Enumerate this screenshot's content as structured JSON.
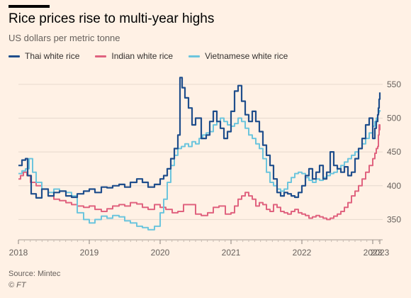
{
  "header": {
    "title": "Rice prices rise to multi-year highs",
    "subtitle": "US dollars per metric tonne"
  },
  "footer": {
    "source": "Source: Mintec",
    "credit": "© FT"
  },
  "colors": {
    "background": "#fff1e5",
    "grid": "#e6d9ce",
    "text": "#33302e",
    "muted": "#66605c"
  },
  "chart_data": {
    "type": "line",
    "title": "Rice prices rise to multi-year highs",
    "subtitle": "US dollars per metric tonne",
    "xlabel": "",
    "ylabel": "",
    "y_axis_side": "right",
    "grid": true,
    "legend_position": "top-left",
    "xlim": [
      2018.0,
      2023.1
    ],
    "ylim": [
      320,
      575
    ],
    "y_ticks": [
      350,
      400,
      450,
      500,
      550
    ],
    "x_tick_labels": [
      "2018",
      "2019",
      "2020",
      "2021",
      "2022",
      "2023",
      "2023"
    ],
    "x_tick_positions": [
      2018.0,
      2019.0,
      2020.0,
      2021.0,
      2022.0,
      2023.0,
      2023.1
    ],
    "series": [
      {
        "name": "Thai white rice",
        "color": "#1f4e8c",
        "points": [
          [
            2018.0,
            430
          ],
          [
            2018.05,
            438
          ],
          [
            2018.1,
            440
          ],
          [
            2018.13,
            415
          ],
          [
            2018.18,
            388
          ],
          [
            2018.25,
            382
          ],
          [
            2018.33,
            395
          ],
          [
            2018.42,
            385
          ],
          [
            2018.5,
            390
          ],
          [
            2018.58,
            392
          ],
          [
            2018.67,
            385
          ],
          [
            2018.75,
            383
          ],
          [
            2018.83,
            388
          ],
          [
            2018.92,
            392
          ],
          [
            2019.0,
            395
          ],
          [
            2019.08,
            390
          ],
          [
            2019.17,
            398
          ],
          [
            2019.25,
            397
          ],
          [
            2019.33,
            400
          ],
          [
            2019.42,
            402
          ],
          [
            2019.5,
            398
          ],
          [
            2019.58,
            405
          ],
          [
            2019.67,
            410
          ],
          [
            2019.75,
            405
          ],
          [
            2019.83,
            398
          ],
          [
            2019.92,
            402
          ],
          [
            2020.0,
            410
          ],
          [
            2020.05,
            415
          ],
          [
            2020.1,
            425
          ],
          [
            2020.15,
            440
          ],
          [
            2020.2,
            455
          ],
          [
            2020.25,
            475
          ],
          [
            2020.28,
            560
          ],
          [
            2020.31,
            545
          ],
          [
            2020.35,
            530
          ],
          [
            2020.4,
            515
          ],
          [
            2020.45,
            490
          ],
          [
            2020.5,
            500
          ],
          [
            2020.58,
            470
          ],
          [
            2020.65,
            475
          ],
          [
            2020.7,
            495
          ],
          [
            2020.75,
            510
          ],
          [
            2020.8,
            495
          ],
          [
            2020.85,
            485
          ],
          [
            2020.9,
            470
          ],
          [
            2020.95,
            480
          ],
          [
            2021.0,
            510
          ],
          [
            2021.05,
            540
          ],
          [
            2021.1,
            548
          ],
          [
            2021.15,
            525
          ],
          [
            2021.2,
            505
          ],
          [
            2021.25,
            495
          ],
          [
            2021.3,
            510
          ],
          [
            2021.35,
            495
          ],
          [
            2021.4,
            480
          ],
          [
            2021.45,
            460
          ],
          [
            2021.5,
            445
          ],
          [
            2021.55,
            430
          ],
          [
            2021.6,
            410
          ],
          [
            2021.65,
            390
          ],
          [
            2021.7,
            385
          ],
          [
            2021.75,
            390
          ],
          [
            2021.8,
            388
          ],
          [
            2021.85,
            385
          ],
          [
            2021.9,
            383
          ],
          [
            2021.95,
            390
          ],
          [
            2022.0,
            400
          ],
          [
            2022.05,
            415
          ],
          [
            2022.1,
            425
          ],
          [
            2022.15,
            410
          ],
          [
            2022.2,
            420
          ],
          [
            2022.25,
            430
          ],
          [
            2022.3,
            410
          ],
          [
            2022.35,
            420
          ],
          [
            2022.4,
            450
          ],
          [
            2022.45,
            430
          ],
          [
            2022.5,
            425
          ],
          [
            2022.55,
            420
          ],
          [
            2022.6,
            428
          ],
          [
            2022.65,
            415
          ],
          [
            2022.7,
            420
          ],
          [
            2022.75,
            440
          ],
          [
            2022.8,
            455
          ],
          [
            2022.85,
            470
          ],
          [
            2022.9,
            490
          ],
          [
            2022.95,
            500
          ],
          [
            2023.0,
            470
          ],
          [
            2023.03,
            485
          ],
          [
            2023.05,
            495
          ],
          [
            2023.07,
            505
          ],
          [
            2023.08,
            515
          ],
          [
            2023.09,
            528
          ],
          [
            2023.1,
            538
          ]
        ]
      },
      {
        "name": "Indian white rice",
        "color": "#e0637f",
        "points": [
          [
            2018.0,
            410
          ],
          [
            2018.03,
            415
          ],
          [
            2018.07,
            420
          ],
          [
            2018.12,
            415
          ],
          [
            2018.17,
            405
          ],
          [
            2018.25,
            400
          ],
          [
            2018.33,
            395
          ],
          [
            2018.42,
            385
          ],
          [
            2018.5,
            380
          ],
          [
            2018.58,
            378
          ],
          [
            2018.67,
            375
          ],
          [
            2018.75,
            372
          ],
          [
            2018.83,
            370
          ],
          [
            2018.92,
            368
          ],
          [
            2019.0,
            370
          ],
          [
            2019.08,
            365
          ],
          [
            2019.17,
            362
          ],
          [
            2019.25,
            366
          ],
          [
            2019.33,
            370
          ],
          [
            2019.42,
            372
          ],
          [
            2019.5,
            370
          ],
          [
            2019.58,
            375
          ],
          [
            2019.67,
            373
          ],
          [
            2019.75,
            368
          ],
          [
            2019.83,
            365
          ],
          [
            2019.92,
            372
          ],
          [
            2020.0,
            368
          ],
          [
            2020.08,
            365
          ],
          [
            2020.17,
            360
          ],
          [
            2020.25,
            362
          ],
          [
            2020.33,
            372
          ],
          [
            2020.42,
            372
          ],
          [
            2020.5,
            358
          ],
          [
            2020.58,
            356
          ],
          [
            2020.67,
            360
          ],
          [
            2020.75,
            368
          ],
          [
            2020.83,
            370
          ],
          [
            2020.92,
            358
          ],
          [
            2021.0,
            360
          ],
          [
            2021.05,
            370
          ],
          [
            2021.1,
            380
          ],
          [
            2021.15,
            385
          ],
          [
            2021.2,
            390
          ],
          [
            2021.25,
            385
          ],
          [
            2021.3,
            380
          ],
          [
            2021.35,
            370
          ],
          [
            2021.4,
            375
          ],
          [
            2021.45,
            372
          ],
          [
            2021.5,
            365
          ],
          [
            2021.55,
            362
          ],
          [
            2021.6,
            372
          ],
          [
            2021.65,
            368
          ],
          [
            2021.7,
            362
          ],
          [
            2021.75,
            360
          ],
          [
            2021.8,
            358
          ],
          [
            2021.85,
            362
          ],
          [
            2021.9,
            365
          ],
          [
            2021.95,
            360
          ],
          [
            2022.0,
            358
          ],
          [
            2022.05,
            356
          ],
          [
            2022.1,
            352
          ],
          [
            2022.15,
            354
          ],
          [
            2022.2,
            356
          ],
          [
            2022.25,
            354
          ],
          [
            2022.3,
            352
          ],
          [
            2022.35,
            350
          ],
          [
            2022.4,
            352
          ],
          [
            2022.45,
            355
          ],
          [
            2022.5,
            358
          ],
          [
            2022.55,
            362
          ],
          [
            2022.6,
            368
          ],
          [
            2022.65,
            375
          ],
          [
            2022.7,
            385
          ],
          [
            2022.75,
            392
          ],
          [
            2022.8,
            400
          ],
          [
            2022.85,
            410
          ],
          [
            2022.9,
            420
          ],
          [
            2022.95,
            430
          ],
          [
            2023.0,
            440
          ],
          [
            2023.03,
            448
          ],
          [
            2023.05,
            455
          ],
          [
            2023.07,
            458
          ],
          [
            2023.08,
            475
          ],
          [
            2023.09,
            490
          ],
          [
            2023.1,
            482
          ]
        ]
      },
      {
        "name": "Vietnamese white rice",
        "color": "#6cc5dd",
        "points": [
          [
            2018.0,
            418
          ],
          [
            2018.05,
            422
          ],
          [
            2018.1,
            425
          ],
          [
            2018.15,
            440
          ],
          [
            2018.2,
            420
          ],
          [
            2018.25,
            405
          ],
          [
            2018.33,
            395
          ],
          [
            2018.42,
            390
          ],
          [
            2018.5,
            395
          ],
          [
            2018.58,
            392
          ],
          [
            2018.67,
            390
          ],
          [
            2018.75,
            385
          ],
          [
            2018.83,
            360
          ],
          [
            2018.92,
            350
          ],
          [
            2019.0,
            345
          ],
          [
            2019.08,
            350
          ],
          [
            2019.17,
            355
          ],
          [
            2019.25,
            352
          ],
          [
            2019.33,
            356
          ],
          [
            2019.42,
            354
          ],
          [
            2019.5,
            348
          ],
          [
            2019.58,
            345
          ],
          [
            2019.67,
            340
          ],
          [
            2019.75,
            338
          ],
          [
            2019.83,
            335
          ],
          [
            2019.92,
            340
          ],
          [
            2020.0,
            360
          ],
          [
            2020.05,
            380
          ],
          [
            2020.1,
            405
          ],
          [
            2020.15,
            430
          ],
          [
            2020.2,
            445
          ],
          [
            2020.25,
            455
          ],
          [
            2020.3,
            458
          ],
          [
            2020.35,
            462
          ],
          [
            2020.4,
            458
          ],
          [
            2020.45,
            465
          ],
          [
            2020.5,
            462
          ],
          [
            2020.55,
            470
          ],
          [
            2020.6,
            475
          ],
          [
            2020.65,
            478
          ],
          [
            2020.7,
            480
          ],
          [
            2020.75,
            490
          ],
          [
            2020.8,
            495
          ],
          [
            2020.85,
            500
          ],
          [
            2020.9,
            495
          ],
          [
            2020.95,
            490
          ],
          [
            2021.0,
            488
          ],
          [
            2021.05,
            492
          ],
          [
            2021.1,
            500
          ],
          [
            2021.15,
            495
          ],
          [
            2021.2,
            485
          ],
          [
            2021.25,
            475
          ],
          [
            2021.3,
            470
          ],
          [
            2021.35,
            462
          ],
          [
            2021.4,
            455
          ],
          [
            2021.45,
            440
          ],
          [
            2021.5,
            420
          ],
          [
            2021.55,
            405
          ],
          [
            2021.6,
            400
          ],
          [
            2021.65,
            395
          ],
          [
            2021.7,
            392
          ],
          [
            2021.75,
            395
          ],
          [
            2021.8,
            405
          ],
          [
            2021.85,
            412
          ],
          [
            2021.9,
            418
          ],
          [
            2021.95,
            420
          ],
          [
            2022.0,
            418
          ],
          [
            2022.05,
            412
          ],
          [
            2022.1,
            408
          ],
          [
            2022.15,
            405
          ],
          [
            2022.2,
            410
          ],
          [
            2022.25,
            408
          ],
          [
            2022.3,
            412
          ],
          [
            2022.35,
            415
          ],
          [
            2022.4,
            418
          ],
          [
            2022.45,
            420
          ],
          [
            2022.5,
            425
          ],
          [
            2022.55,
            430
          ],
          [
            2022.6,
            435
          ],
          [
            2022.65,
            440
          ],
          [
            2022.7,
            445
          ],
          [
            2022.75,
            450
          ],
          [
            2022.8,
            455
          ],
          [
            2022.85,
            462
          ],
          [
            2022.9,
            470
          ],
          [
            2022.95,
            478
          ],
          [
            2023.0,
            488
          ],
          [
            2023.03,
            495
          ],
          [
            2023.05,
            500
          ],
          [
            2023.07,
            505
          ],
          [
            2023.08,
            508
          ],
          [
            2023.09,
            510
          ],
          [
            2023.1,
            512
          ]
        ]
      }
    ]
  }
}
